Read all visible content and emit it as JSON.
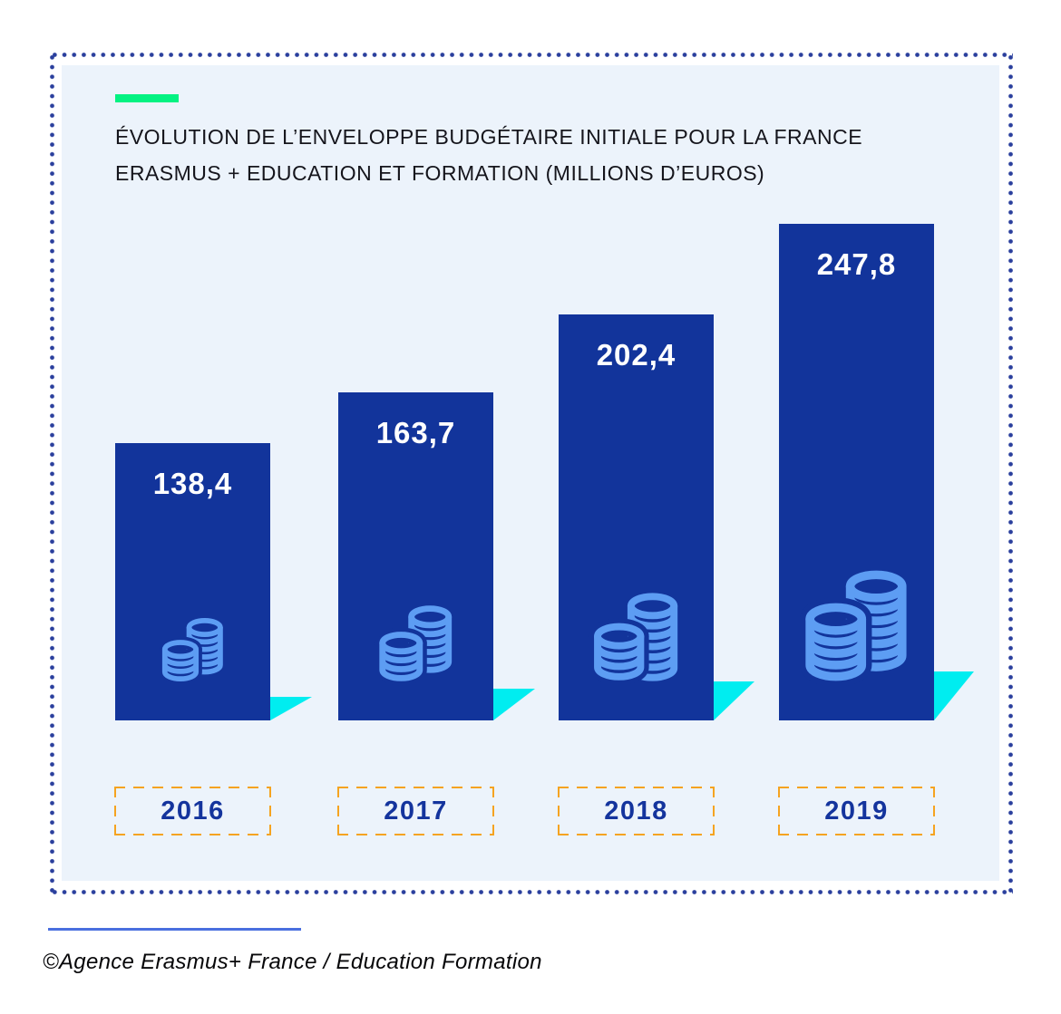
{
  "header": {
    "title_line1": "ÉVOLUTION DE L’ENVELOPPE BUDGÉTAIRE INITIALE POUR LA FRANCE",
    "title_line2": "ERASMUS + EDUCATION ET FORMATION (MILLIONS D’EUROS)"
  },
  "chart_data": {
    "type": "bar",
    "title": "ÉVOLUTION DE L’ENVELOPPE BUDGÉTAIRE INITIALE POUR LA FRANCE ERASMUS + EDUCATION ET FORMATION (MILLIONS D’EUROS)",
    "unit": "millions d'euros",
    "categories": [
      "2016",
      "2017",
      "2018",
      "2019"
    ],
    "values": [
      138.4,
      163.7,
      202.4,
      247.8
    ],
    "value_labels": [
      "138,4",
      "163,7",
      "202,4",
      "247,8"
    ],
    "ylim": [
      0,
      260
    ],
    "grid": false,
    "legend_position": "none",
    "decorations": {
      "coin_stack_icons": [
        {
          "front_coins": 4,
          "back_coins": 6
        },
        {
          "front_coins": 4,
          "back_coins": 6
        },
        {
          "front_coins": 4,
          "back_coins": 7
        },
        {
          "front_coins": 5,
          "back_coins": 7
        }
      ]
    }
  },
  "footer": {
    "credit": "©Agence Erasmus+ France / Education Formation"
  },
  "colors": {
    "page_bg": "#FFFFFF",
    "panel_bg": "#ECF3FB",
    "dot_border_blue": "#2A3F9D",
    "bar_blue": "#12349B",
    "value_text": "#FFFFFF",
    "coin_light_blue": "#5D9DF3",
    "triangle_cyan": "#00EDF0",
    "dash_orange": "#F5A320",
    "year_text_blue": "#14349D",
    "accent_green": "#03F282",
    "title_ink": "#15151C",
    "footer_line_blue": "#4A6FDF",
    "footer_ink": "#070709"
  }
}
